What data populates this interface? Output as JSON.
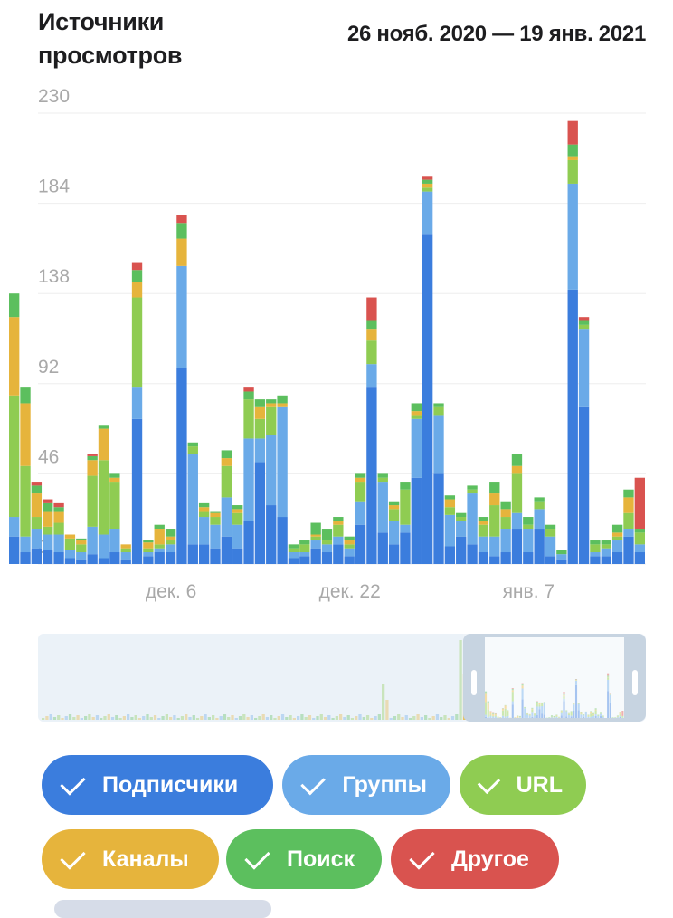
{
  "header": {
    "title": "Источники просмотров",
    "range": "26 нояб. 2020 — 19 янв. 2021"
  },
  "colors": {
    "subscribers": "#3b7ddd",
    "groups": "#6aaae8",
    "url": "#8fcc52",
    "channels": "#e6b43c",
    "search": "#5cbf5e",
    "other": "#d9534f",
    "grid": "#eeeeee",
    "axis_text": "#a9a9a9"
  },
  "legend": {
    "items": [
      {
        "key": "subscribers",
        "label": "Подписчики",
        "color": "#3b7ddd",
        "checked": true
      },
      {
        "key": "groups",
        "label": "Группы",
        "color": "#6aaae8",
        "checked": true
      },
      {
        "key": "url",
        "label": "URL",
        "color": "#8fcc52",
        "checked": true
      },
      {
        "key": "channels",
        "label": "Каналы",
        "color": "#e6b43c",
        "checked": true
      },
      {
        "key": "search",
        "label": "Поиск",
        "color": "#5cbf5e",
        "checked": true
      },
      {
        "key": "other",
        "label": "Другое",
        "color": "#d9534f",
        "checked": true
      }
    ]
  },
  "chart_data": {
    "type": "bar",
    "stacked": true,
    "y_ticks": [
      0,
      46,
      92,
      138,
      184,
      230
    ],
    "ylim": [
      0,
      230
    ],
    "x_ticks": [
      {
        "label": "дек. 6",
        "index": 14
      },
      {
        "label": "дек. 22",
        "index": 30
      },
      {
        "label": "янв. 7",
        "index": 46
      }
    ],
    "grid": true,
    "series": [
      {
        "key": "subscribers",
        "name": "Подписчики",
        "color": "#3b7ddd",
        "values": [
          14,
          6,
          8,
          7,
          6,
          3,
          2,
          5,
          3,
          6,
          2,
          74,
          4,
          6,
          6,
          100,
          10,
          10,
          8,
          14,
          8,
          22,
          52,
          30,
          24,
          3,
          4,
          8,
          6,
          10,
          4,
          20,
          90,
          16,
          10,
          16,
          44,
          168,
          46,
          9,
          14,
          10,
          6,
          4,
          6,
          18,
          6,
          18,
          4,
          2,
          140,
          80,
          4,
          4,
          6,
          14,
          6
        ]
      },
      {
        "key": "groups",
        "name": "Группы",
        "color": "#6aaae8",
        "values": [
          10,
          8,
          10,
          8,
          9,
          4,
          4,
          14,
          12,
          12,
          4,
          16,
          2,
          2,
          4,
          52,
          46,
          14,
          12,
          20,
          12,
          42,
          12,
          36,
          56,
          3,
          2,
          4,
          4,
          4,
          4,
          12,
          12,
          26,
          12,
          4,
          30,
          22,
          30,
          16,
          8,
          26,
          8,
          10,
          12,
          8,
          12,
          10,
          10,
          3,
          54,
          40,
          2,
          4,
          6,
          4,
          4
        ]
      },
      {
        "key": "url",
        "name": "URL",
        "color": "#8fcc52",
        "values": [
          62,
          36,
          6,
          4,
          6,
          6,
          4,
          26,
          38,
          24,
          2,
          46,
          2,
          2,
          2,
          0,
          4,
          3,
          4,
          16,
          6,
          20,
          10,
          14,
          0,
          2,
          4,
          2,
          2,
          6,
          2,
          10,
          12,
          2,
          6,
          18,
          2,
          2,
          4,
          4,
          2,
          2,
          6,
          16,
          6,
          20,
          2,
          4,
          4,
          0,
          12,
          2,
          4,
          2,
          2,
          8,
          6
        ]
      },
      {
        "key": "channels",
        "name": "Каналы",
        "color": "#e6b43c",
        "values": [
          40,
          32,
          12,
          8,
          6,
          2,
          2,
          8,
          16,
          2,
          2,
          8,
          3,
          8,
          2,
          14,
          0,
          2,
          2,
          4,
          2,
          0,
          6,
          2,
          2,
          0,
          0,
          1,
          0,
          2,
          2,
          2,
          6,
          0,
          2,
          0,
          2,
          2,
          0,
          4,
          0,
          0,
          2,
          6,
          4,
          4,
          0,
          0,
          0,
          0,
          2,
          0,
          0,
          0,
          2,
          8,
          0
        ]
      },
      {
        "key": "search",
        "name": "Поиск",
        "color": "#5cbf5e",
        "values": [
          12,
          8,
          4,
          4,
          2,
          0,
          1,
          2,
          2,
          2,
          0,
          6,
          1,
          2,
          4,
          8,
          2,
          2,
          1,
          4,
          2,
          4,
          4,
          2,
          4,
          2,
          2,
          6,
          6,
          2,
          2,
          2,
          4,
          2,
          2,
          4,
          4,
          2,
          2,
          2,
          2,
          2,
          2,
          6,
          4,
          6,
          4,
          2,
          2,
          2,
          6,
          2,
          2,
          2,
          4,
          4,
          2
        ]
      },
      {
        "key": "other",
        "name": "Другое",
        "color": "#d9534f",
        "values": [
          0,
          0,
          2,
          2,
          2,
          0,
          0,
          1,
          0,
          0,
          0,
          4,
          0,
          0,
          0,
          4,
          0,
          0,
          0,
          0,
          0,
          2,
          0,
          0,
          0,
          0,
          0,
          0,
          0,
          0,
          0,
          0,
          12,
          0,
          0,
          0,
          0,
          2,
          0,
          0,
          0,
          0,
          0,
          0,
          0,
          0,
          0,
          0,
          0,
          0,
          12,
          2,
          0,
          0,
          0,
          0,
          26
        ]
      }
    ]
  }
}
